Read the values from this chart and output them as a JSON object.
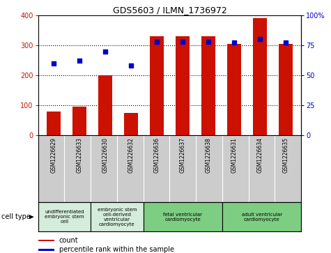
{
  "title": "GDS5603 / ILMN_1736972",
  "samples": [
    "GSM1226629",
    "GSM1226633",
    "GSM1226630",
    "GSM1226632",
    "GSM1226636",
    "GSM1226637",
    "GSM1226638",
    "GSM1226631",
    "GSM1226634",
    "GSM1226635"
  ],
  "counts": [
    80,
    95,
    200,
    75,
    330,
    330,
    330,
    305,
    390,
    305
  ],
  "percentiles": [
    60,
    62,
    70,
    58,
    78,
    78,
    78,
    77,
    80,
    77
  ],
  "cell_types": [
    {
      "label": "undifferentiated\nembryonic stem\ncell",
      "span": [
        0,
        2
      ],
      "color": "#d4edda"
    },
    {
      "label": "embryonic stem\ncell-derived\nventricular\ncardiomyocyte",
      "span": [
        2,
        4
      ],
      "color": "#d4edda"
    },
    {
      "label": "fetal ventricular\ncardiomyocyte",
      "span": [
        4,
        7
      ],
      "color": "#7dce82"
    },
    {
      "label": "adult ventricular\ncardiomyocyte",
      "span": [
        7,
        10
      ],
      "color": "#7dce82"
    }
  ],
  "left_ylim": [
    0,
    400
  ],
  "right_ylim": [
    0,
    100
  ],
  "left_yticks": [
    0,
    100,
    200,
    300,
    400
  ],
  "right_yticks": [
    0,
    25,
    50,
    75,
    100
  ],
  "right_yticklabels": [
    "0",
    "25",
    "50",
    "75",
    "100%"
  ],
  "bar_color": "#cc1100",
  "dot_color": "#0000cc",
  "sample_bg": "#cccccc",
  "plot_bg": "#ffffff",
  "legend_count_label": "count",
  "legend_pct_label": "percentile rank within the sample",
  "cell_type_label": "cell type",
  "grid_yticks": [
    100,
    200,
    300
  ]
}
